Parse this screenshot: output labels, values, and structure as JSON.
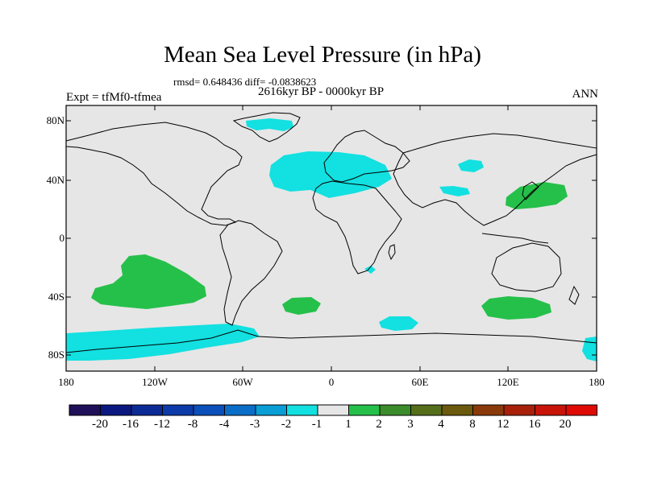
{
  "title": "Mean Sea Level Pressure (in hPa)",
  "stats": "rmsd= 0.648436 diff= -0.0838623",
  "period": "2616kyr BP - 0000kyr BP",
  "experiment": "Expt = tfMf0-tfmea",
  "season": "ANN",
  "lat_labels": [
    "80N",
    "40N",
    "0",
    "40S",
    "80S"
  ],
  "lon_labels": [
    "180",
    "120W",
    "60W",
    "0",
    "60E",
    "120E",
    "180"
  ],
  "colorbar": {
    "labels": [
      "-20",
      "-16",
      "-12",
      "-8",
      "-4",
      "-3",
      "-2",
      "-1",
      "1",
      "2",
      "3",
      "4",
      "8",
      "12",
      "16",
      "20"
    ],
    "colors": [
      "#20105a",
      "#0a1880",
      "#0b2a96",
      "#0c3aa8",
      "#0b4fba",
      "#0a6ec8",
      "#0a9ed6",
      "#13e0e0",
      "#e6e6e6",
      "#25c04a",
      "#3b8c2a",
      "#556e1a",
      "#6b5a0e",
      "#8a3a0a",
      "#a8200a",
      "#c81408",
      "#e00a04"
    ]
  }
}
